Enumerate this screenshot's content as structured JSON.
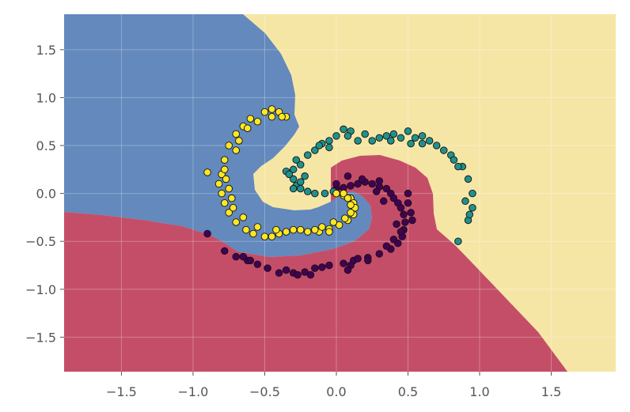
{
  "chart_data": {
    "type": "scatter",
    "title": "",
    "xlabel": "",
    "ylabel": "",
    "xlim": [
      -1.9,
      1.95
    ],
    "ylim": [
      -1.86,
      1.87
    ],
    "grid": true,
    "legend": "none",
    "x_ticks": [
      -1.5,
      -1.0,
      -0.5,
      0.0,
      0.5,
      1.0,
      1.5
    ],
    "y_ticks": [
      -1.5,
      -1.0,
      -0.5,
      0.0,
      0.5,
      1.0,
      1.5
    ],
    "x_tick_labels": [
      "−1.5",
      "−1.0",
      "−0.5",
      "0.0",
      "0.5",
      "1.0",
      "1.5"
    ],
    "y_tick_labels": [
      "−1.5",
      "−1.0",
      "−0.5",
      "0.0",
      "0.5",
      "1.0",
      "1.5"
    ],
    "regions": [
      {
        "class": 0,
        "color": "#c44e68"
      },
      {
        "class": 1,
        "color": "#f6e6a6"
      },
      {
        "class": 2,
        "color": "#6389bd"
      }
    ],
    "series": [
      {
        "class": 0,
        "color": "#440154",
        "points": [
          [
            0.0,
            0.05
          ],
          [
            0.05,
            0.06
          ],
          [
            0.1,
            0.08
          ],
          [
            0.15,
            0.1
          ],
          [
            0.2,
            0.12
          ],
          [
            0.25,
            0.1
          ],
          [
            0.3,
            0.07
          ],
          [
            0.35,
            0.05
          ],
          [
            0.38,
            0.0
          ],
          [
            0.4,
            -0.05
          ],
          [
            0.43,
            -0.1
          ],
          [
            0.45,
            -0.15
          ],
          [
            0.47,
            -0.22
          ],
          [
            0.48,
            -0.3
          ],
          [
            0.47,
            -0.38
          ],
          [
            0.46,
            -0.45
          ],
          [
            0.43,
            -0.52
          ],
          [
            0.38,
            -0.58
          ],
          [
            0.3,
            -0.63
          ],
          [
            0.22,
            -0.67
          ],
          [
            0.12,
            -0.7
          ],
          [
            0.05,
            -0.73
          ],
          [
            -0.05,
            -0.75
          ],
          [
            -0.15,
            -0.78
          ],
          [
            -0.22,
            -0.82
          ],
          [
            -0.3,
            -0.83
          ],
          [
            -0.4,
            -0.83
          ],
          [
            -0.48,
            -0.78
          ],
          [
            -0.55,
            -0.74
          ],
          [
            -0.62,
            -0.7
          ],
          [
            -0.7,
            -0.66
          ],
          [
            -0.78,
            -0.6
          ],
          [
            -0.9,
            -0.42
          ],
          [
            0.5,
            0.0
          ],
          [
            0.5,
            -0.1
          ],
          [
            0.52,
            -0.2
          ],
          [
            0.53,
            -0.28
          ],
          [
            0.45,
            -0.4
          ],
          [
            0.4,
            -0.48
          ],
          [
            0.35,
            -0.55
          ],
          [
            0.22,
            -0.7
          ],
          [
            0.1,
            -0.75
          ],
          [
            0.08,
            -0.8
          ],
          [
            -0.1,
            -0.77
          ],
          [
            -0.18,
            -0.85
          ],
          [
            -0.27,
            -0.85
          ],
          [
            -0.35,
            -0.8
          ],
          [
            0.0,
            0.1
          ],
          [
            0.08,
            0.18
          ],
          [
            0.18,
            0.15
          ],
          [
            0.3,
            0.13
          ],
          [
            0.15,
            -0.68
          ],
          [
            -0.65,
            -0.66
          ],
          [
            -0.6,
            -0.7
          ],
          [
            0.42,
            -0.32
          ],
          [
            0.28,
            0.02
          ],
          [
            0.33,
            -0.08
          ]
        ]
      },
      {
        "class": 1,
        "color": "#21918c",
        "points": [
          [
            -0.35,
            0.23
          ],
          [
            -0.3,
            0.25
          ],
          [
            -0.25,
            0.3
          ],
          [
            -0.2,
            0.4
          ],
          [
            -0.1,
            0.52
          ],
          [
            0.0,
            0.6
          ],
          [
            0.1,
            0.65
          ],
          [
            0.2,
            0.62
          ],
          [
            0.3,
            0.58
          ],
          [
            0.4,
            0.62
          ],
          [
            0.5,
            0.65
          ],
          [
            0.6,
            0.6
          ],
          [
            0.7,
            0.5
          ],
          [
            0.8,
            0.4
          ],
          [
            0.88,
            0.28
          ],
          [
            0.92,
            0.15
          ],
          [
            0.95,
            0.0
          ],
          [
            0.95,
            -0.15
          ],
          [
            0.92,
            -0.28
          ],
          [
            0.85,
            -0.5
          ],
          [
            -0.3,
            0.15
          ],
          [
            -0.28,
            0.08
          ],
          [
            -0.25,
            0.05
          ],
          [
            -0.2,
            0.02
          ],
          [
            -0.15,
            0.0
          ],
          [
            -0.08,
            0.0
          ],
          [
            -0.02,
            0.02
          ],
          [
            -0.3,
            0.05
          ],
          [
            -0.25,
            0.12
          ],
          [
            -0.22,
            0.18
          ],
          [
            -0.15,
            0.45
          ],
          [
            -0.05,
            0.55
          ],
          [
            0.05,
            0.67
          ],
          [
            0.15,
            0.55
          ],
          [
            0.25,
            0.55
          ],
          [
            0.35,
            0.6
          ],
          [
            0.45,
            0.58
          ],
          [
            0.55,
            0.58
          ],
          [
            0.65,
            0.55
          ],
          [
            0.75,
            0.45
          ],
          [
            0.82,
            0.35
          ],
          [
            0.85,
            0.28
          ],
          [
            0.9,
            -0.08
          ],
          [
            0.93,
            -0.22
          ],
          [
            -0.33,
            0.2
          ],
          [
            -0.28,
            0.35
          ],
          [
            -0.12,
            0.5
          ],
          [
            0.08,
            0.6
          ],
          [
            0.38,
            0.55
          ],
          [
            0.6,
            0.52
          ],
          [
            -0.05,
            0.48
          ],
          [
            0.52,
            0.52
          ]
        ]
      },
      {
        "class": 2,
        "color": "#fde725",
        "points": [
          [
            0.0,
            0.0
          ],
          [
            0.05,
            -0.02
          ],
          [
            0.1,
            -0.05
          ],
          [
            0.12,
            -0.1
          ],
          [
            0.13,
            -0.15
          ],
          [
            0.12,
            -0.22
          ],
          [
            0.08,
            -0.28
          ],
          [
            0.02,
            -0.33
          ],
          [
            -0.05,
            -0.37
          ],
          [
            -0.12,
            -0.4
          ],
          [
            -0.2,
            -0.4
          ],
          [
            -0.3,
            -0.38
          ],
          [
            -0.4,
            -0.42
          ],
          [
            -0.45,
            -0.45
          ],
          [
            -0.5,
            -0.45
          ],
          [
            -0.58,
            -0.42
          ],
          [
            -0.63,
            -0.38
          ],
          [
            -0.7,
            -0.3
          ],
          [
            -0.75,
            -0.2
          ],
          [
            -0.78,
            -0.1
          ],
          [
            -0.8,
            0.0
          ],
          [
            -0.82,
            0.1
          ],
          [
            -0.8,
            0.2
          ],
          [
            -0.78,
            0.35
          ],
          [
            -0.75,
            0.5
          ],
          [
            -0.7,
            0.62
          ],
          [
            -0.65,
            0.7
          ],
          [
            -0.6,
            0.78
          ],
          [
            -0.5,
            0.85
          ],
          [
            -0.45,
            0.88
          ],
          [
            -0.4,
            0.85
          ],
          [
            -0.35,
            0.8
          ],
          [
            0.05,
            0.0
          ],
          [
            0.08,
            -0.05
          ],
          [
            0.1,
            -0.12
          ],
          [
            0.1,
            -0.2
          ],
          [
            0.06,
            -0.26
          ],
          [
            -0.02,
            -0.3
          ],
          [
            -0.1,
            -0.35
          ],
          [
            -0.15,
            -0.38
          ],
          [
            -0.25,
            -0.38
          ],
          [
            -0.35,
            -0.4
          ],
          [
            -0.42,
            -0.38
          ],
          [
            -0.55,
            -0.35
          ],
          [
            -0.65,
            -0.25
          ],
          [
            -0.72,
            -0.15
          ],
          [
            -0.73,
            -0.05
          ],
          [
            -0.75,
            0.05
          ],
          [
            -0.77,
            0.15
          ],
          [
            -0.78,
            0.25
          ],
          [
            -0.7,
            0.45
          ],
          [
            -0.68,
            0.55
          ],
          [
            -0.62,
            0.68
          ],
          [
            -0.55,
            0.75
          ],
          [
            -0.45,
            0.8
          ],
          [
            -0.38,
            0.8
          ],
          [
            -0.9,
            0.22
          ],
          [
            -0.05,
            -0.4
          ]
        ]
      }
    ]
  }
}
